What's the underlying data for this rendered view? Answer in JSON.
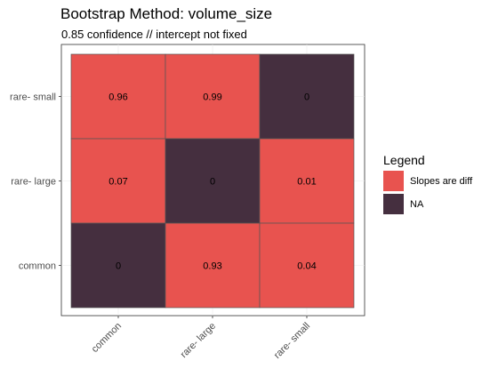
{
  "chart_data": {
    "type": "heatmap",
    "title": "Bootstrap Method: volume_size",
    "subtitle": "0.85 confidence // intercept not fixed",
    "xlabel": "",
    "ylabel": "",
    "x_categories": [
      "common",
      "rare- large",
      "rare- small"
    ],
    "y_categories": [
      "common",
      "rare- large",
      "rare- small"
    ],
    "cells": [
      {
        "x": "common",
        "y": "rare- small",
        "value": "0.96",
        "group": "Slopes are diff"
      },
      {
        "x": "rare- large",
        "y": "rare- small",
        "value": "0.99",
        "group": "Slopes are diff"
      },
      {
        "x": "rare- small",
        "y": "rare- small",
        "value": "0",
        "group": "NA"
      },
      {
        "x": "common",
        "y": "rare- large",
        "value": "0.07",
        "group": "Slopes are diff"
      },
      {
        "x": "rare- large",
        "y": "rare- large",
        "value": "0",
        "group": "NA"
      },
      {
        "x": "rare- small",
        "y": "rare- large",
        "value": "0.01",
        "group": "Slopes are diff"
      },
      {
        "x": "common",
        "y": "common",
        "value": "0",
        "group": "NA"
      },
      {
        "x": "rare- large",
        "y": "common",
        "value": "0.93",
        "group": "Slopes are diff"
      },
      {
        "x": "rare- small",
        "y": "common",
        "value": "0.04",
        "group": "Slopes are diff"
      }
    ],
    "legend": {
      "title": "Legend",
      "position": "right",
      "items": [
        {
          "label": "Slopes are diff",
          "color": "#E8534F"
        },
        {
          "label": "NA",
          "color": "#452F3F"
        }
      ]
    },
    "grid": true,
    "x_tick_rotation_deg": 45
  }
}
